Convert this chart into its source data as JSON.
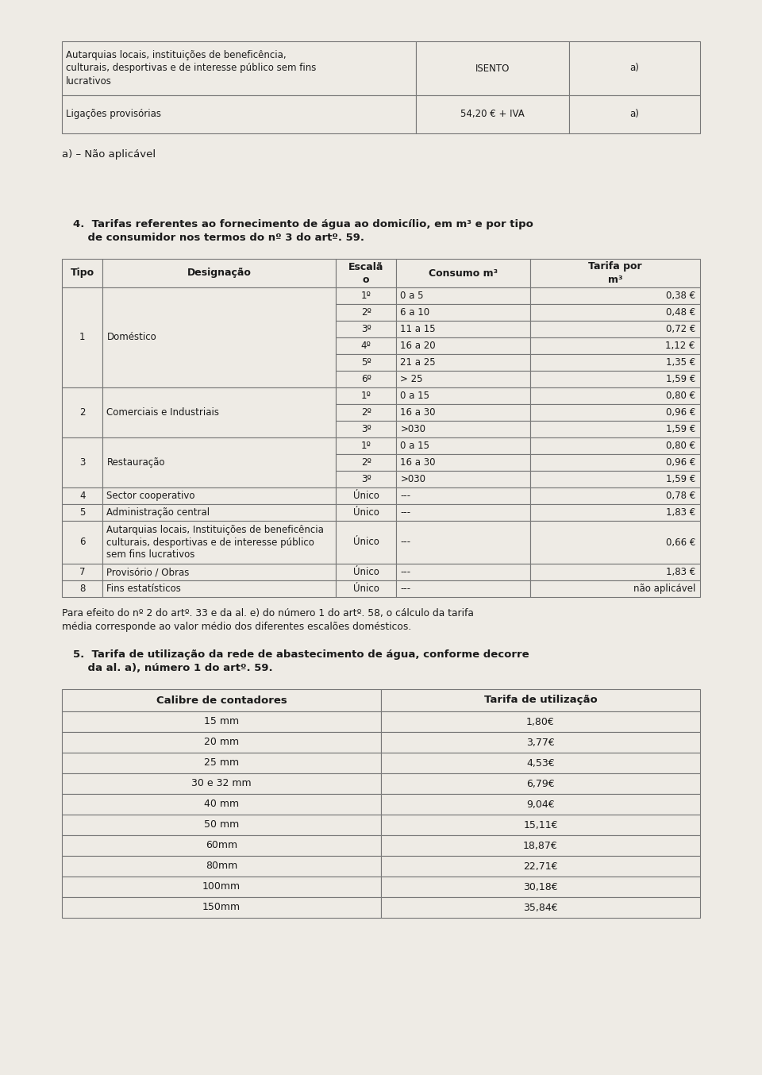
{
  "bg_color": "#eeebe5",
  "text_color": "#1a1a1a",
  "border_color": "#777777",
  "table1_rows": [
    [
      "Autarquias locais, instituições de beneficência,\nculturais, desportivas e de interesse público sem fins\nlucrativos",
      "ISENTO",
      "a)"
    ],
    [
      "Ligações provisórias",
      "54,20 € + IVA",
      "a)"
    ]
  ],
  "nota_a": "a) – Não aplicável",
  "section4_bold": "4. Tarifas referentes ao fornecimento de água ao domicílio, em m³ e por tipo",
  "section4_normal": "  de consumidor nos termos do nº 3 do artº. 59.",
  "table2_headers": [
    "Tipo",
    "Designação",
    "Escalã\no",
    "Consumo m³",
    "Tarifa por\nm³"
  ],
  "table2_groups": [
    {
      "tipo": "1",
      "desig": "Doméstico",
      "rows": [
        [
          "1º",
          "0 a 5",
          "0,38 €"
        ],
        [
          "2º",
          "6 a 10",
          "0,48 €"
        ],
        [
          "3º",
          "11 a 15",
          "0,72 €"
        ],
        [
          "4º",
          "16 a 20",
          "1,12 €"
        ],
        [
          "5º",
          "21 a 25",
          "1,35 €"
        ],
        [
          "6º",
          "> 25",
          "1,59 €"
        ]
      ]
    },
    {
      "tipo": "2",
      "desig": "Comerciais e Industriais",
      "rows": [
        [
          "1º",
          "0 a 15",
          "0,80 €"
        ],
        [
          "2º",
          "16 a 30",
          "0,96 €"
        ],
        [
          "3º",
          ">030",
          "1,59 €"
        ]
      ]
    },
    {
      "tipo": "3",
      "desig": "Restauração",
      "rows": [
        [
          "1º",
          "0 a 15",
          "0,80 €"
        ],
        [
          "2º",
          "16 a 30",
          "0,96 €"
        ],
        [
          "3º",
          ">030",
          "1,59 €"
        ]
      ]
    },
    {
      "tipo": "4",
      "desig": "Sector cooperativo",
      "rows": [
        [
          "Único",
          "---",
          "0,78 €"
        ]
      ]
    },
    {
      "tipo": "5",
      "desig": "Administração central",
      "rows": [
        [
          "Único",
          "---",
          "1,83 €"
        ]
      ]
    },
    {
      "tipo": "6",
      "desig": "Autarquias locais, Instituições de beneficência\nculturais, desportivas e de interesse público\nsem fins lucrativos",
      "rows": [
        [
          "Único",
          "---",
          "0,66 €"
        ]
      ]
    },
    {
      "tipo": "7",
      "desig": "Provisório / Obras",
      "rows": [
        [
          "Único",
          "---",
          "1,83 €"
        ]
      ]
    },
    {
      "tipo": "8",
      "desig": "Fins estatísticos",
      "rows": [
        [
          "Único",
          "---",
          "não aplicável"
        ]
      ]
    }
  ],
  "para_text": "Para efeito do nº 2 do artº. 33 e da al. e) do número 1 do artº. 58, o cálculo da tarifa\nmédia corresponde ao valor médio dos diferentes escalões domésticos.",
  "section5_bold": "5. Tarifa de utilização da rede de abastecimento de água, conforme decorre",
  "section5_normal": "  da al. a), número 1 do artº. 59.",
  "table3_headers": [
    "Calibre de contadores",
    "Tarifa de utilização"
  ],
  "table3_rows": [
    [
      "15 mm",
      "1,80€"
    ],
    [
      "20 mm",
      "3,77€"
    ],
    [
      "25 mm",
      "4,53€"
    ],
    [
      "30 e 32 mm",
      "6,79€"
    ],
    [
      "40 mm",
      "9,04€"
    ],
    [
      "50 mm",
      "15,11€"
    ],
    [
      "60mm",
      "18,87€"
    ],
    [
      "80mm",
      "22,71€"
    ],
    [
      "100mm",
      "30,18€"
    ],
    [
      "150mm",
      "35,84€"
    ]
  ]
}
